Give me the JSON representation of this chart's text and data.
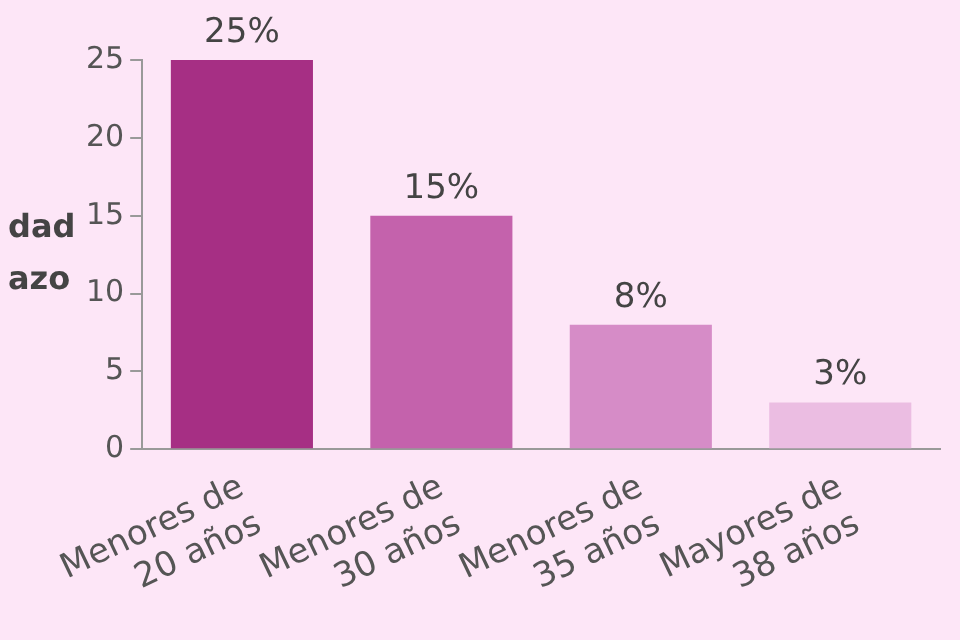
{
  "chart_data": {
    "type": "bar",
    "ylabel": "dad\nazo",
    "categories": [
      "Menores de\n20 años",
      "Menores de\n30 años",
      "Menores de\n35 años",
      "Mayores de\n38 años"
    ],
    "values": [
      25,
      15,
      8,
      3
    ],
    "colors": [
      "#a62f84",
      "#c462ac",
      "#d68cc7",
      "#ebbde2"
    ],
    "value_labels": [
      "25%",
      "15%",
      "8%",
      "3%"
    ],
    "ylim": [
      0,
      25
    ],
    "yticks": [
      0,
      5,
      10,
      15,
      20,
      25
    ],
    "grid": false,
    "legend": false
  }
}
